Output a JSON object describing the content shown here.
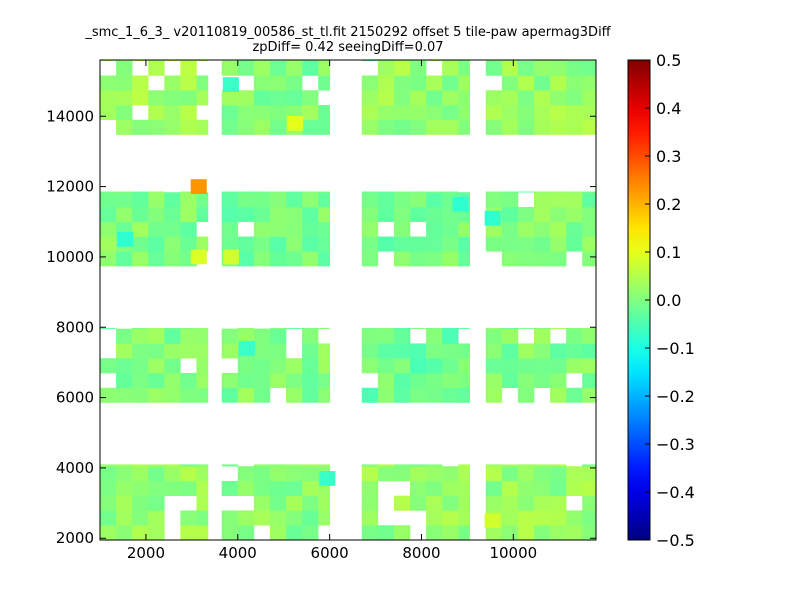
{
  "chart_data": {
    "type": "heatmap",
    "title": "_smc_1_6_3_ v20110819_00586_st_tl.fit 2150292 offset 5 tile-paw apermag3Diff",
    "subtitle": "zpDiff= 0.42 seeingDiff=0.07",
    "xlabel": "",
    "ylabel": "",
    "xlim": [
      1000,
      11800
    ],
    "ylim": [
      1950,
      15600
    ],
    "x_ticks": [
      2000,
      4000,
      6000,
      8000,
      10000
    ],
    "x_tick_labels": [
      "2000",
      "4000",
      "6000",
      "8000",
      "10000"
    ],
    "y_ticks": [
      2000,
      4000,
      6000,
      8000,
      10000,
      12000,
      14000
    ],
    "y_tick_labels": [
      "2000",
      "4000",
      "6000",
      "8000",
      "10000",
      "12000",
      "14000"
    ],
    "grid": false,
    "colormap": "jet",
    "colorbar": {
      "vmin": -0.5,
      "vmax": 0.5,
      "ticks": [
        0.5,
        0.4,
        0.3,
        0.2,
        0.1,
        0.0,
        -0.1,
        -0.2,
        -0.3,
        -0.4,
        -0.5
      ],
      "tick_labels": [
        "0.5",
        "0.4",
        "0.3",
        "0.2",
        "0.1",
        "0.0",
        "−0.1",
        "−0.2",
        "−0.3",
        "−0.4",
        "−0.5"
      ]
    },
    "cell_size": [
      350,
      420
    ],
    "tiles": [
      {
        "x": [
          1000,
          3350
        ],
        "y": [
          13480,
          15600
        ],
        "fill": "0.9",
        "mean": 0.03
      },
      {
        "x": [
          3650,
          6000
        ],
        "y": [
          13480,
          15600
        ],
        "fill": "0.9",
        "mean": 0.0
      },
      {
        "x": [
          6700,
          9050
        ],
        "y": [
          13480,
          15600
        ],
        "fill": "0.9",
        "mean": 0.02
      },
      {
        "x": [
          9400,
          11800
        ],
        "y": [
          13480,
          15600
        ],
        "fill": "0.95",
        "mean": 0.02
      },
      {
        "x": [
          1000,
          3350
        ],
        "y": [
          9740,
          11860
        ],
        "fill": "0.9",
        "mean": 0.0
      },
      {
        "x": [
          3650,
          6000
        ],
        "y": [
          9740,
          11860
        ],
        "fill": "0.95",
        "mean": -0.01
      },
      {
        "x": [
          6700,
          9050
        ],
        "y": [
          9740,
          11860
        ],
        "fill": "0.95",
        "mean": -0.01
      },
      {
        "x": [
          9400,
          11800
        ],
        "y": [
          9740,
          11860
        ],
        "fill": "0.95",
        "mean": 0.0
      },
      {
        "x": [
          1000,
          3350
        ],
        "y": [
          5860,
          7980
        ],
        "fill": "0.9",
        "mean": 0.0
      },
      {
        "x": [
          3650,
          6000
        ],
        "y": [
          5860,
          7980
        ],
        "fill": "0.8",
        "mean": 0.0
      },
      {
        "x": [
          6700,
          9050
        ],
        "y": [
          5860,
          7980
        ],
        "fill": "0.95",
        "mean": -0.02
      },
      {
        "x": [
          9400,
          11800
        ],
        "y": [
          5860,
          7980
        ],
        "fill": "0.9",
        "mean": 0.0
      },
      {
        "x": [
          1000,
          3350
        ],
        "y": [
          1950,
          4100
        ],
        "fill": "0.9",
        "mean": 0.02
      },
      {
        "x": [
          3650,
          6000
        ],
        "y": [
          1950,
          4100
        ],
        "fill": "0.9",
        "mean": 0.01
      },
      {
        "x": [
          6700,
          9050
        ],
        "y": [
          1950,
          4100
        ],
        "fill": "0.9",
        "mean": 0.02
      },
      {
        "x": [
          9400,
          11800
        ],
        "y": [
          1950,
          4100
        ],
        "fill": "0.95",
        "mean": 0.02
      }
    ],
    "outliers": [
      {
        "x": 3150,
        "y": 12000,
        "value": 0.23
      },
      {
        "x": 5250,
        "y": 13800,
        "value": 0.1
      },
      {
        "x": 3150,
        "y": 10000,
        "value": 0.09
      },
      {
        "x": 3850,
        "y": 10000,
        "value": 0.08
      },
      {
        "x": 9550,
        "y": 2500,
        "value": 0.08
      },
      {
        "x": 1550,
        "y": 10500,
        "value": -0.08
      },
      {
        "x": 4200,
        "y": 7400,
        "value": -0.07
      },
      {
        "x": 5950,
        "y": 3700,
        "value": -0.07
      },
      {
        "x": 8850,
        "y": 11500,
        "value": -0.08
      },
      {
        "x": 9550,
        "y": 11100,
        "value": -0.08
      },
      {
        "x": 3850,
        "y": 14900,
        "value": -0.07
      }
    ]
  }
}
